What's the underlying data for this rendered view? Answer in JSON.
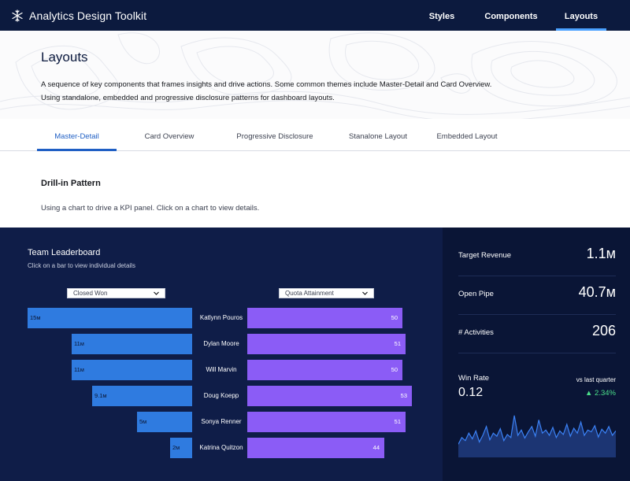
{
  "nav": {
    "brand": "Analytics Design Toolkit",
    "items": [
      {
        "label": "Styles",
        "active": false
      },
      {
        "label": "Components",
        "active": false
      },
      {
        "label": "Layouts",
        "active": true
      }
    ]
  },
  "header": {
    "title": "Layouts",
    "description_line1": "A sequence of key components that frames insights and drive actions. Some common themes include Master-Detail and Card Overview.",
    "description_line2": "Using standalone, embedded and progressive disclosure patterns for dashboard layouts."
  },
  "tabs": [
    {
      "label": "Master-Detail",
      "active": true
    },
    {
      "label": "Card Overview",
      "active": false
    },
    {
      "label": "Progressive Disclosure",
      "active": false
    },
    {
      "label": "Stanalone Layout",
      "active": false
    },
    {
      "label": "Embedded Layout",
      "active": false
    }
  ],
  "section": {
    "title": "Drill-in Pattern",
    "description": "Using a chart to drive a KPI panel. Click on a chart to view details."
  },
  "leaderboard": {
    "title": "Team Leaderboard",
    "subtitle": "Click on a bar to view individual details",
    "left_dropdown": "Closed Won",
    "right_dropdown": "Quota Attainment",
    "rows": [
      {
        "name": "Katlynn Pouros",
        "closed_won": 15,
        "closed_won_label": "15м",
        "quota": 50,
        "quota_label": "50"
      },
      {
        "name": "Dylan Moore",
        "closed_won": 11,
        "closed_won_label": "11м",
        "quota": 51,
        "quota_label": "51"
      },
      {
        "name": "Will Marvin",
        "closed_won": 11,
        "closed_won_label": "11м",
        "quota": 50,
        "quota_label": "50"
      },
      {
        "name": "Doug Koepp",
        "closed_won": 9.1,
        "closed_won_label": "9.1м",
        "quota": 53,
        "quota_label": "53"
      },
      {
        "name": "Sonya Renner",
        "closed_won": 5,
        "closed_won_label": "5м",
        "quota": 51,
        "quota_label": "51"
      },
      {
        "name": "Katrina Quitzon",
        "closed_won": 2,
        "closed_won_label": "2м",
        "quota": 44,
        "quota_label": "44"
      }
    ]
  },
  "kpis": [
    {
      "label": "Target Revenue",
      "value": "1.1м"
    },
    {
      "label": "Open Pipe",
      "value": "40.7м"
    },
    {
      "label": "# Activities",
      "value": "206"
    }
  ],
  "win_rate": {
    "label": "Win Rate",
    "value": "0.12",
    "comparison_label": "vs last quarter",
    "delta": "▲ 2.34%",
    "delta_color": "#4be08a",
    "sparkline": [
      0.3,
      0.45,
      0.38,
      0.55,
      0.42,
      0.6,
      0.35,
      0.5,
      0.7,
      0.4,
      0.55,
      0.48,
      0.65,
      0.38,
      0.52,
      0.45,
      0.95,
      0.5,
      0.62,
      0.44,
      0.58,
      0.7,
      0.48,
      0.85,
      0.55,
      0.62,
      0.5,
      0.68,
      0.45,
      0.6,
      0.52,
      0.75,
      0.48,
      0.66,
      0.55,
      0.8,
      0.5,
      0.62,
      0.58,
      0.72,
      0.46,
      0.64,
      0.55,
      0.7,
      0.5,
      0.6
    ]
  },
  "colors": {
    "nav_bg": "#0c1a3e",
    "dash_bg": "#0f1d48",
    "kpi_bg": "#0a1536",
    "closed_won_bar": "#2f7be0",
    "quota_bar": "#8b5cf6",
    "accent": "#1f5fc4"
  }
}
